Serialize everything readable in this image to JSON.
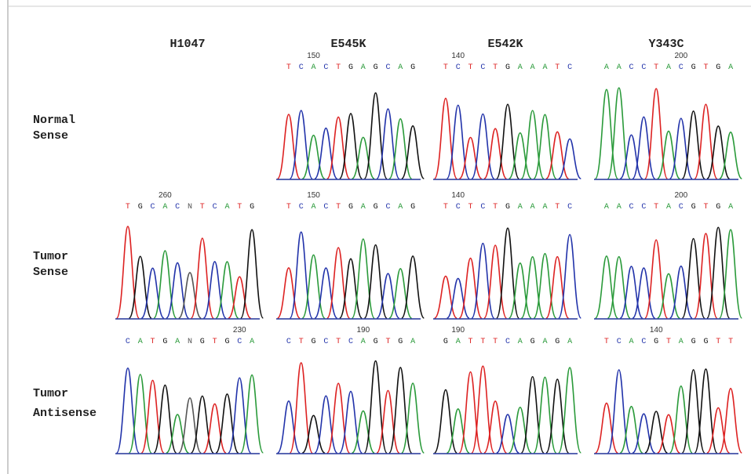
{
  "columns": [
    "H1047",
    "E545K",
    "E542K",
    "Y343C"
  ],
  "rows": [
    {
      "label": [
        "Normal",
        "Sense"
      ],
      "panels": [
        null,
        {
          "position": 150,
          "bases": [
            "T",
            "C",
            "A",
            "C",
            "T",
            "G",
            "A",
            "G",
            "C",
            "A",
            "G"
          ]
        },
        {
          "position": 140,
          "bases": [
            "T",
            "C",
            "T",
            "C",
            "T",
            "G",
            "A",
            "A",
            "A",
            "T",
            "C"
          ]
        },
        {
          "position": 200,
          "bases": [
            "A",
            "A",
            "C",
            "C",
            "T",
            "A",
            "C",
            "G",
            "T",
            "G",
            "A"
          ]
        }
      ]
    },
    {
      "label": [
        "Tumor",
        "Sense"
      ],
      "panels": [
        {
          "position": 260,
          "bases": [
            "T",
            "G",
            "C",
            "A",
            "C",
            "N",
            "T",
            "C",
            "A",
            "T",
            "G"
          ]
        },
        {
          "position": 150,
          "bases": [
            "T",
            "C",
            "A",
            "C",
            "T",
            "G",
            "A",
            "G",
            "C",
            "A",
            "G"
          ]
        },
        {
          "position": 140,
          "bases": [
            "T",
            "C",
            "T",
            "C",
            "T",
            "G",
            "A",
            "A",
            "A",
            "T",
            "C"
          ]
        },
        {
          "position": 200,
          "bases": [
            "A",
            "A",
            "C",
            "C",
            "T",
            "A",
            "C",
            "G",
            "T",
            "G",
            "A"
          ]
        }
      ]
    },
    {
      "label": [
        "Tumor",
        "Antisense"
      ],
      "panels": [
        {
          "position": 230,
          "bases": [
            "C",
            "A",
            "T",
            "G",
            "A",
            "N",
            "G",
            "T",
            "G",
            "C",
            "A"
          ]
        },
        {
          "position": 190,
          "bases": [
            "C",
            "T",
            "G",
            "C",
            "T",
            "C",
            "A",
            "G",
            "T",
            "G",
            "A"
          ]
        },
        {
          "position": 190,
          "bases": [
            "G",
            "A",
            "T",
            "T",
            "T",
            "C",
            "A",
            "G",
            "A",
            "G",
            "A"
          ]
        },
        {
          "position": 140,
          "bases": [
            "T",
            "C",
            "A",
            "C",
            "G",
            "T",
            "A",
            "G",
            "G",
            "T",
            "T"
          ]
        }
      ]
    }
  ]
}
